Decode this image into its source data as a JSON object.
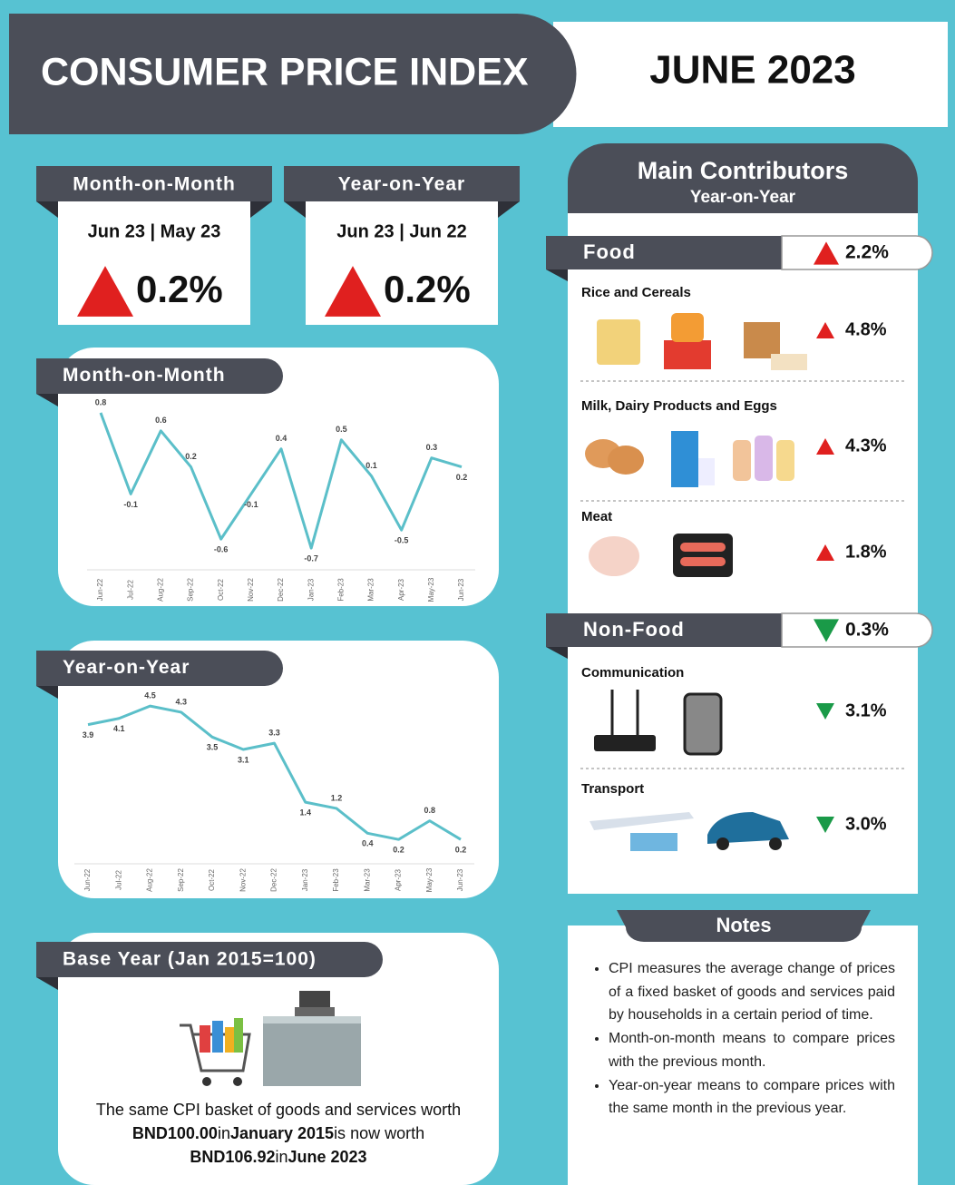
{
  "header": {
    "title": "CONSUMER PRICE INDEX",
    "date": "JUNE 2023"
  },
  "summary": [
    {
      "title": "Month-on-Month",
      "period": "Jun 23 | May 23",
      "change": "0.2%",
      "direction": "up"
    },
    {
      "title": "Year-on-Year",
      "period": "Jun 23 | Jun 22",
      "change": "0.2%",
      "direction": "up"
    }
  ],
  "chart_data": [
    {
      "type": "line",
      "title": "Month-on-Month",
      "categories": [
        "Jun-22",
        "Jul-22",
        "Aug-22",
        "Sep-22",
        "Oct-22",
        "Nov-22",
        "Dec-22",
        "Jan-23",
        "Feb-23",
        "Mar-23",
        "Apr-23",
        "May-23",
        "Jun-23"
      ],
      "values": [
        0.8,
        -0.1,
        0.6,
        0.2,
        -0.6,
        -0.1,
        0.4,
        -0.7,
        0.5,
        0.1,
        -0.5,
        0.3,
        0.2
      ],
      "color": "#5bbfc9",
      "ylim": [
        -0.8,
        0.9
      ]
    },
    {
      "type": "line",
      "title": "Year-on-Year",
      "categories": [
        "Jun-22",
        "Jul-22",
        "Aug-22",
        "Sep-22",
        "Oct-22",
        "Nov-22",
        "Dec-22",
        "Jan-23",
        "Feb-23",
        "Mar-23",
        "Apr-23",
        "May-23",
        "Jun-23"
      ],
      "values": [
        3.9,
        4.1,
        4.5,
        4.3,
        3.5,
        3.1,
        3.3,
        1.4,
        1.2,
        0.4,
        0.2,
        0.8,
        0.2
      ],
      "color": "#5bbfc9",
      "ylim": [
        0,
        5
      ]
    }
  ],
  "contributors": {
    "title": "Main Contributors",
    "subtitle": "Year-on-Year",
    "groups": [
      {
        "name": "Food",
        "change": "2.2%",
        "direction": "up",
        "items": [
          {
            "name": "Rice and Cereals",
            "change": "4.8%",
            "direction": "up"
          },
          {
            "name": "Milk, Dairy Products and Eggs",
            "change": "4.3%",
            "direction": "up"
          },
          {
            "name": "Meat",
            "change": "1.8%",
            "direction": "up"
          }
        ]
      },
      {
        "name": "Non-Food",
        "change": "0.3%",
        "direction": "down",
        "items": [
          {
            "name": "Communication",
            "change": "3.1%",
            "direction": "down"
          },
          {
            "name": "Transport",
            "change": "3.0%",
            "direction": "down"
          }
        ]
      }
    ]
  },
  "base_year": {
    "title": "Base Year (Jan 2015=100)",
    "lines": [
      [
        {
          "text": "The same CPI basket of goods and services worth",
          "bold": false
        }
      ],
      [
        {
          "text": "BND100.00",
          "bold": true
        },
        {
          "text": "in",
          "bold": false
        },
        {
          "text": "January 2015",
          "bold": true
        },
        {
          "text": "is now worth",
          "bold": false
        }
      ],
      [
        {
          "text": "BND106.92",
          "bold": true
        },
        {
          "text": "in",
          "bold": false
        },
        {
          "text": "June 2023",
          "bold": true
        }
      ]
    ]
  },
  "notes": {
    "title": "Notes",
    "items": [
      "CPI measures the average change of prices of a fixed basket of goods and services paid by households in a certain period of time.",
      "Month-on-month means to compare prices with the previous month.",
      "Year-on-year means to compare prices with the same month in the previous year."
    ]
  }
}
